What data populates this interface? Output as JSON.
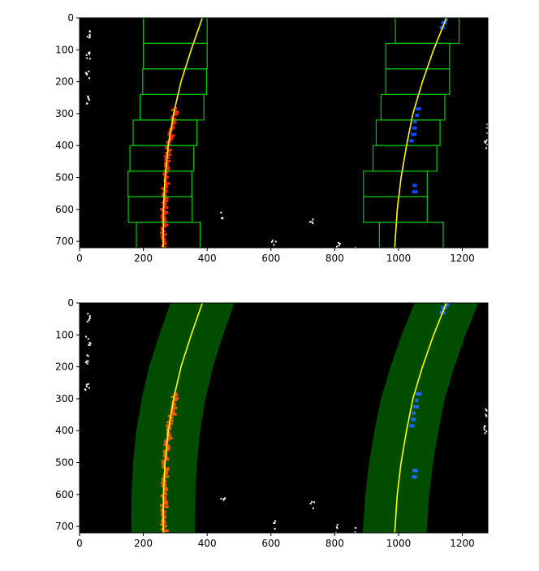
{
  "chart_data": [
    {
      "type": "image-plot",
      "panel": "sliding-window lane search",
      "xlim": [
        0,
        1280
      ],
      "ylim": [
        720,
        0
      ],
      "x_ticks": [
        "0",
        "200",
        "400",
        "600",
        "800",
        "1000",
        "1200"
      ],
      "y_ticks": [
        "0",
        "100",
        "200",
        "300",
        "400",
        "500",
        "600",
        "700"
      ],
      "series": [
        {
          "role": "left-lane-fit",
          "color": "#ffff00",
          "x": [
            385,
            350,
            318,
            295,
            278,
            268,
            263,
            262
          ],
          "y": [
            0,
            100,
            200,
            300,
            400,
            500,
            600,
            720
          ]
        },
        {
          "role": "right-lane-fit",
          "color": "#ffff00",
          "x": [
            1150,
            1110,
            1075,
            1045,
            1025,
            1008,
            996,
            988
          ],
          "y": [
            0,
            100,
            200,
            300,
            400,
            500,
            600,
            720
          ]
        }
      ],
      "windows_left": [
        {
          "xc": 278,
          "yc": 680
        },
        {
          "xc": 253,
          "yc": 600
        },
        {
          "xc": 252,
          "yc": 520
        },
        {
          "xc": 258,
          "yc": 440
        },
        {
          "xc": 268,
          "yc": 360
        },
        {
          "xc": 290,
          "yc": 280
        },
        {
          "xc": 298,
          "yc": 200
        },
        {
          "xc": 300,
          "yc": 120
        },
        {
          "xc": 300,
          "yc": 40
        }
      ],
      "windows_right": [
        {
          "xc": 1040,
          "yc": 680
        },
        {
          "xc": 990,
          "yc": 600
        },
        {
          "xc": 990,
          "yc": 520
        },
        {
          "xc": 1020,
          "yc": 440
        },
        {
          "xc": 1030,
          "yc": 360
        },
        {
          "xc": 1045,
          "yc": 280
        },
        {
          "xc": 1060,
          "yc": 200
        },
        {
          "xc": 1060,
          "yc": 120
        },
        {
          "xc": 1090,
          "yc": 40
        }
      ],
      "window_half_width": 100,
      "window_height": 80,
      "colors": {
        "window": "#00c800",
        "left_pixels": "#ff2a00",
        "right_pixels": "#0a4cff",
        "background": "#000000",
        "fit": "#ffff00"
      }
    },
    {
      "type": "image-plot",
      "panel": "search-around-polynomial",
      "xlim": [
        0,
        1280
      ],
      "ylim": [
        720,
        0
      ],
      "x_ticks": [
        "0",
        "200",
        "400",
        "600",
        "800",
        "1000",
        "1200"
      ],
      "y_ticks": [
        "0",
        "100",
        "200",
        "300",
        "400",
        "500",
        "600",
        "700"
      ],
      "series": [
        {
          "role": "left-lane-fit",
          "color": "#ffff00",
          "x": [
            385,
            350,
            318,
            295,
            278,
            268,
            263,
            262
          ],
          "y": [
            0,
            100,
            200,
            300,
            400,
            500,
            600,
            720
          ]
        },
        {
          "role": "right-lane-fit",
          "color": "#ffff00",
          "x": [
            1150,
            1110,
            1075,
            1045,
            1025,
            1008,
            996,
            988
          ],
          "y": [
            0,
            100,
            200,
            300,
            400,
            500,
            600,
            720
          ]
        }
      ],
      "margin": 100,
      "colors": {
        "band": "#004d00",
        "left_pixels": "#ff5a00",
        "right_pixels": "#1f6bff",
        "background": "#000000",
        "fit": "#ffff00"
      }
    }
  ]
}
